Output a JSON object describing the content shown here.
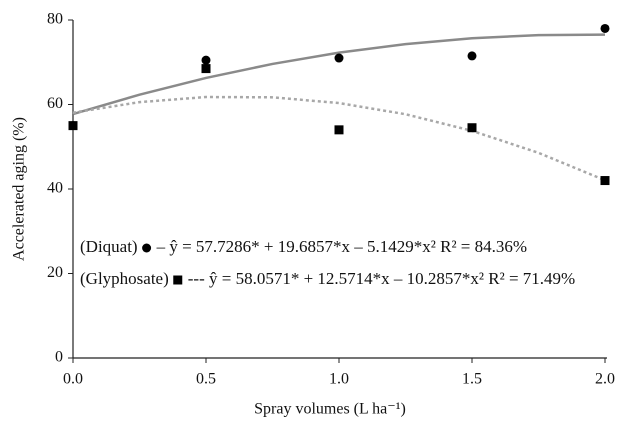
{
  "chart_data": {
    "type": "scatter",
    "xlabel": "Spray volumes (L ha⁻¹)",
    "ylabel": "Accelerated aging (%)",
    "xlim": [
      0,
      2
    ],
    "ylim": [
      0,
      80
    ],
    "xticks": [
      {
        "value": 0,
        "label": "0.0"
      },
      0.5,
      {
        "value": 1,
        "label": "1.0"
      },
      1.5,
      {
        "value": 2,
        "label": "2.0"
      }
    ],
    "yticks": [
      0,
      20,
      40,
      60,
      80
    ],
    "series": [
      {
        "name": "(Diquat)",
        "color": "#000000",
        "marker": "circle",
        "x": [
          0,
          0.5,
          1,
          1.5,
          2
        ],
        "values": [
          55,
          70.5,
          71,
          71.5,
          78
        ],
        "equation": "– ŷ = 57.7286* + 19.6857*x – 5.1429*x² R² = 84.36%",
        "fit": {
          "color": "#8a8a8a",
          "dash": "none",
          "x": [
            0,
            0.25,
            0.5,
            0.75,
            1,
            1.25,
            1.5,
            1.75,
            2
          ],
          "values": [
            57.73,
            62.33,
            66.29,
            69.6,
            72.27,
            74.3,
            75.69,
            76.43,
            76.53
          ]
        }
      },
      {
        "name": "(Glyphosate)",
        "color": "#000000",
        "marker": "square",
        "x": [
          0,
          0.5,
          1,
          1.5,
          2
        ],
        "values": [
          55,
          68.5,
          54,
          54.5,
          42
        ],
        "equation": "--- ŷ = 58.0571* + 12.5714*x – 10.2857*x² R² = 71.49%",
        "fit": {
          "color": "#a8a8a8",
          "dash": "3 3",
          "x": [
            0,
            0.25,
            0.5,
            0.75,
            1,
            1.25,
            1.5,
            1.75,
            2
          ],
          "values": [
            58.06,
            60.56,
            61.77,
            61.7,
            60.34,
            57.7,
            53.77,
            48.56,
            42.06
          ]
        }
      }
    ]
  }
}
